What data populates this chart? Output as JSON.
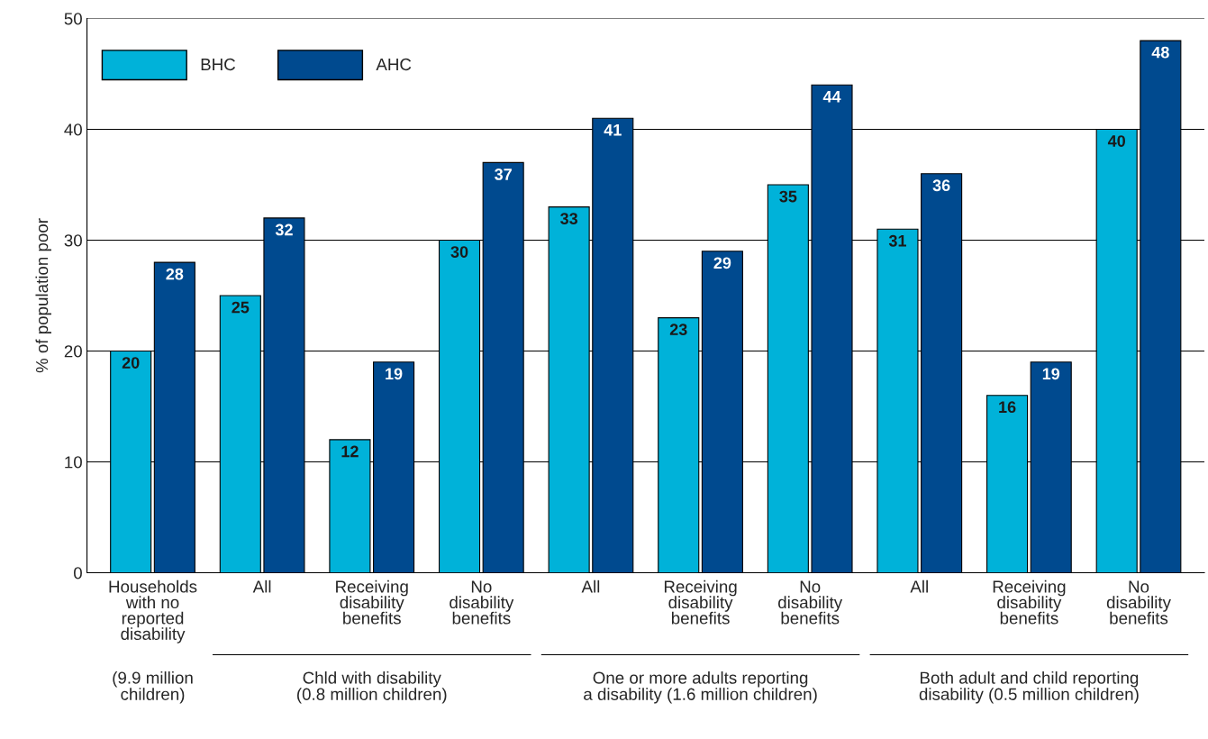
{
  "chart_data": {
    "type": "bar",
    "ylabel": "% of population poor",
    "categories": [
      "Households\nwith no\nreported\ndisability",
      "All",
      "Receiving\ndisability\nbenefits",
      "No\ndisability\nbenefits",
      "All",
      "Receiving\ndisability\nbenefits",
      "No\ndisability\nbenefits",
      "All",
      "Receiving\ndisability\nbenefits",
      "No\ndisability\nbenefits"
    ],
    "series": [
      {
        "name": "BHC",
        "color": "#00b2d9",
        "values": [
          20,
          25,
          12,
          30,
          33,
          23,
          35,
          31,
          16,
          40
        ]
      },
      {
        "name": "AHC",
        "color": "#004a8f",
        "values": [
          28,
          32,
          19,
          37,
          41,
          29,
          44,
          36,
          19,
          48
        ]
      }
    ],
    "annotations": [
      "(9.9 million\nchildren)",
      "Chld with disability\n(0.8 million children)",
      "One or more adults reporting\na disability (1.6 million children)",
      "Both adult and child reporting\ndisability (0.5 million children)"
    ],
    "ylim": [
      0,
      50
    ],
    "yticks": [
      0,
      10,
      20,
      30,
      40,
      50
    ],
    "grid": "y",
    "legend": "top left",
    "data_labels": true
  }
}
